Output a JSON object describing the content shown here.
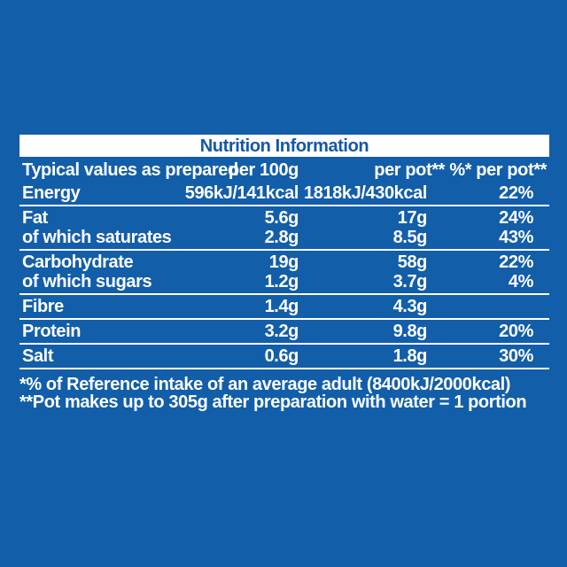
{
  "colors": {
    "background": "#135EA9",
    "title_bar_background": "#FFFFFF",
    "title_text": "#1358A8",
    "table_text": "#FFFFFF",
    "rule_lines": "#FFFFFF"
  },
  "table": {
    "title": "Nutrition Information",
    "columns": {
      "label": "Typical values as prepared",
      "per_100g": "per 100g",
      "per_pot": "per pot**",
      "pct_per_pot": "%* per pot**"
    },
    "groups": [
      {
        "lines": [
          {
            "label": "Energy",
            "per_100g": "596kJ/141kcal",
            "per_pot": "1818kJ/430kcal",
            "pct_per_pot": "22%"
          }
        ]
      },
      {
        "lines": [
          {
            "label": "Fat",
            "per_100g": "5.6g",
            "per_pot": "17g",
            "pct_per_pot": "24%"
          },
          {
            "label": "of which saturates",
            "per_100g": "2.8g",
            "per_pot": "8.5g",
            "pct_per_pot": "43%"
          }
        ]
      },
      {
        "lines": [
          {
            "label": "Carbohydrate",
            "per_100g": "19g",
            "per_pot": "58g",
            "pct_per_pot": "22%"
          },
          {
            "label": "of which sugars",
            "per_100g": "1.2g",
            "per_pot": "3.7g",
            "pct_per_pot": "4%"
          }
        ]
      },
      {
        "lines": [
          {
            "label": "Fibre",
            "per_100g": "1.4g",
            "per_pot": "4.3g",
            "pct_per_pot": ""
          }
        ]
      },
      {
        "lines": [
          {
            "label": "Protein",
            "per_100g": "3.2g",
            "per_pot": "9.8g",
            "pct_per_pot": "20%"
          }
        ]
      },
      {
        "lines": [
          {
            "label": "Salt",
            "per_100g": "0.6g",
            "per_pot": "1.8g",
            "pct_per_pot": "30%"
          }
        ]
      }
    ],
    "footnotes": [
      "*% of Reference intake of an average adult (8400kJ/2000kcal)",
      "**Pot makes up to 305g after preparation with water = 1 portion"
    ]
  }
}
